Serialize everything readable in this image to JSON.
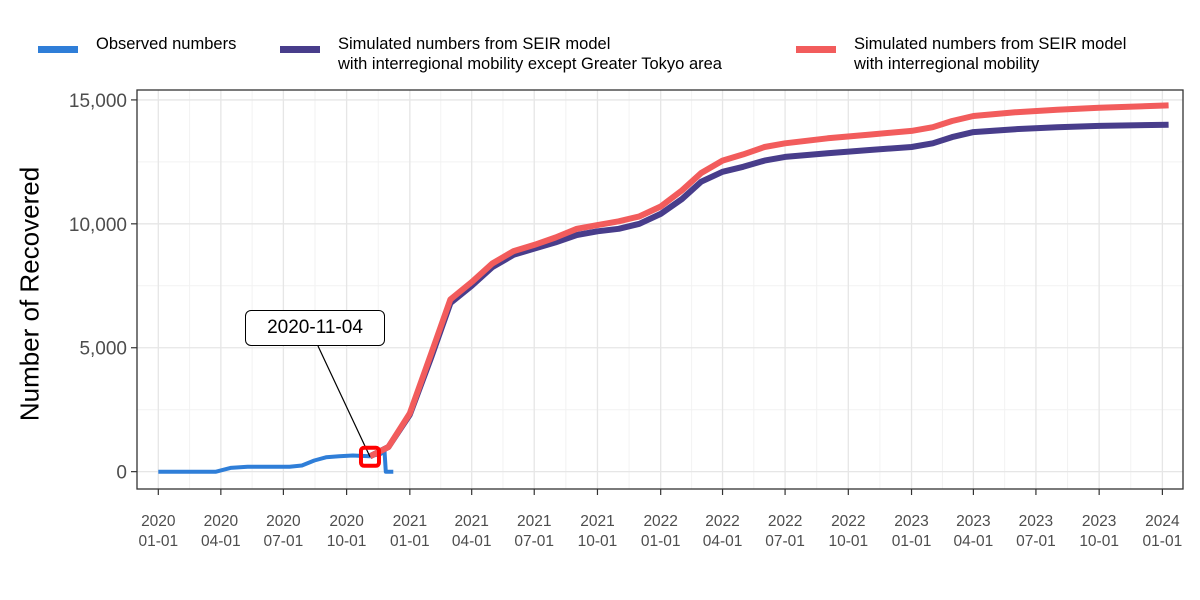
{
  "legend": {
    "items": [
      {
        "lines": [
          "Observed numbers"
        ],
        "color": "#2F7ED8"
      },
      {
        "lines": [
          "Simulated numbers from SEIR model",
          "with interregional mobility except Greater Tokyo area"
        ],
        "color": "#483D8B"
      },
      {
        "lines": [
          "Simulated numbers from SEIR model",
          "with interregional mobility"
        ],
        "color": "#F25C5C"
      }
    ]
  },
  "annotation": {
    "label": "2020-11-04",
    "x": "2020-11-04",
    "y": 600
  },
  "chart_data": {
    "type": "line",
    "title": "",
    "xlabel": "",
    "ylabel": "Number of Recovered",
    "xlim": [
      "2019-12-01",
      "2024-01-31"
    ],
    "ylim": [
      -700,
      15400
    ],
    "yticks": [
      0,
      5000,
      10000,
      15000
    ],
    "ytick_labels": [
      "0",
      "5,000",
      "10,000",
      "15,000"
    ],
    "xticks": [
      "2020-01-01",
      "2020-04-01",
      "2020-07-01",
      "2020-10-01",
      "2021-01-01",
      "2021-04-01",
      "2021-07-01",
      "2021-10-01",
      "2022-01-01",
      "2022-04-01",
      "2022-07-01",
      "2022-10-01",
      "2023-01-01",
      "2023-04-01",
      "2023-07-01",
      "2023-10-01",
      "2024-01-01"
    ],
    "xtick_labels": [
      [
        "2020",
        "01-01"
      ],
      [
        "2020",
        "04-01"
      ],
      [
        "2020",
        "07-01"
      ],
      [
        "2020",
        "10-01"
      ],
      [
        "2021",
        "01-01"
      ],
      [
        "2021",
        "04-01"
      ],
      [
        "2021",
        "07-01"
      ],
      [
        "2021",
        "10-01"
      ],
      [
        "2022",
        "01-01"
      ],
      [
        "2022",
        "04-01"
      ],
      [
        "2022",
        "07-01"
      ],
      [
        "2022",
        "10-01"
      ],
      [
        "2023",
        "01-01"
      ],
      [
        "2023",
        "04-01"
      ],
      [
        "2023",
        "07-01"
      ],
      [
        "2023",
        "10-01"
      ],
      [
        "2024",
        "01-01"
      ]
    ],
    "grid": true,
    "legend_position": "top",
    "series": [
      {
        "name": "Observed numbers",
        "color": "#2F7ED8",
        "points": [
          [
            "2020-01-01",
            0
          ],
          [
            "2020-03-25",
            0
          ],
          [
            "2020-04-15",
            150
          ],
          [
            "2020-05-10",
            200
          ],
          [
            "2020-07-10",
            200
          ],
          [
            "2020-07-28",
            250
          ],
          [
            "2020-08-15",
            450
          ],
          [
            "2020-09-01",
            580
          ],
          [
            "2020-09-20",
            620
          ],
          [
            "2020-10-10",
            650
          ],
          [
            "2020-11-04",
            620
          ],
          [
            "2020-11-20",
            720
          ],
          [
            "2020-11-25",
            900
          ],
          [
            "2020-11-27",
            0
          ],
          [
            "2020-12-08",
            0
          ]
        ]
      },
      {
        "name": "Simulated numbers from SEIR model with interregional mobility except Greater Tokyo area",
        "color": "#483D8B",
        "points": [
          [
            "2020-11-04",
            620
          ],
          [
            "2020-12-01",
            1000
          ],
          [
            "2021-01-01",
            2300
          ],
          [
            "2021-02-01",
            4600
          ],
          [
            "2021-03-01",
            6800
          ],
          [
            "2021-04-01",
            7500
          ],
          [
            "2021-05-01",
            8250
          ],
          [
            "2021-06-01",
            8750
          ],
          [
            "2021-07-01",
            9000
          ],
          [
            "2021-08-01",
            9250
          ],
          [
            "2021-09-01",
            9550
          ],
          [
            "2021-10-01",
            9700
          ],
          [
            "2021-11-01",
            9800
          ],
          [
            "2021-12-01",
            10000
          ],
          [
            "2022-01-01",
            10400
          ],
          [
            "2022-02-01",
            11000
          ],
          [
            "2022-03-01",
            11700
          ],
          [
            "2022-04-01",
            12100
          ],
          [
            "2022-05-01",
            12300
          ],
          [
            "2022-06-01",
            12550
          ],
          [
            "2022-07-01",
            12700
          ],
          [
            "2022-09-01",
            12850
          ],
          [
            "2022-11-01",
            12980
          ],
          [
            "2023-01-01",
            13100
          ],
          [
            "2023-02-01",
            13250
          ],
          [
            "2023-03-01",
            13500
          ],
          [
            "2023-04-01",
            13700
          ],
          [
            "2023-06-01",
            13820
          ],
          [
            "2023-08-01",
            13900
          ],
          [
            "2023-10-01",
            13950
          ],
          [
            "2024-01-10",
            14000
          ]
        ]
      },
      {
        "name": "Simulated numbers from SEIR model with interregional mobility",
        "color": "#F25C5C",
        "points": [
          [
            "2020-11-04",
            620
          ],
          [
            "2020-12-01",
            1000
          ],
          [
            "2021-01-01",
            2350
          ],
          [
            "2021-02-01",
            4750
          ],
          [
            "2021-03-01",
            6950
          ],
          [
            "2021-04-01",
            7650
          ],
          [
            "2021-05-01",
            8400
          ],
          [
            "2021-06-01",
            8900
          ],
          [
            "2021-07-01",
            9150
          ],
          [
            "2021-08-01",
            9450
          ],
          [
            "2021-09-01",
            9800
          ],
          [
            "2021-10-01",
            9950
          ],
          [
            "2021-11-01",
            10100
          ],
          [
            "2021-12-01",
            10300
          ],
          [
            "2022-01-01",
            10700
          ],
          [
            "2022-02-01",
            11350
          ],
          [
            "2022-03-01",
            12050
          ],
          [
            "2022-04-01",
            12550
          ],
          [
            "2022-05-01",
            12800
          ],
          [
            "2022-06-01",
            13100
          ],
          [
            "2022-07-01",
            13250
          ],
          [
            "2022-09-01",
            13450
          ],
          [
            "2022-11-01",
            13600
          ],
          [
            "2023-01-01",
            13750
          ],
          [
            "2023-02-01",
            13900
          ],
          [
            "2023-03-01",
            14150
          ],
          [
            "2023-04-01",
            14350
          ],
          [
            "2023-06-01",
            14500
          ],
          [
            "2023-08-01",
            14600
          ],
          [
            "2023-10-01",
            14680
          ],
          [
            "2024-01-10",
            14780
          ]
        ]
      }
    ]
  }
}
